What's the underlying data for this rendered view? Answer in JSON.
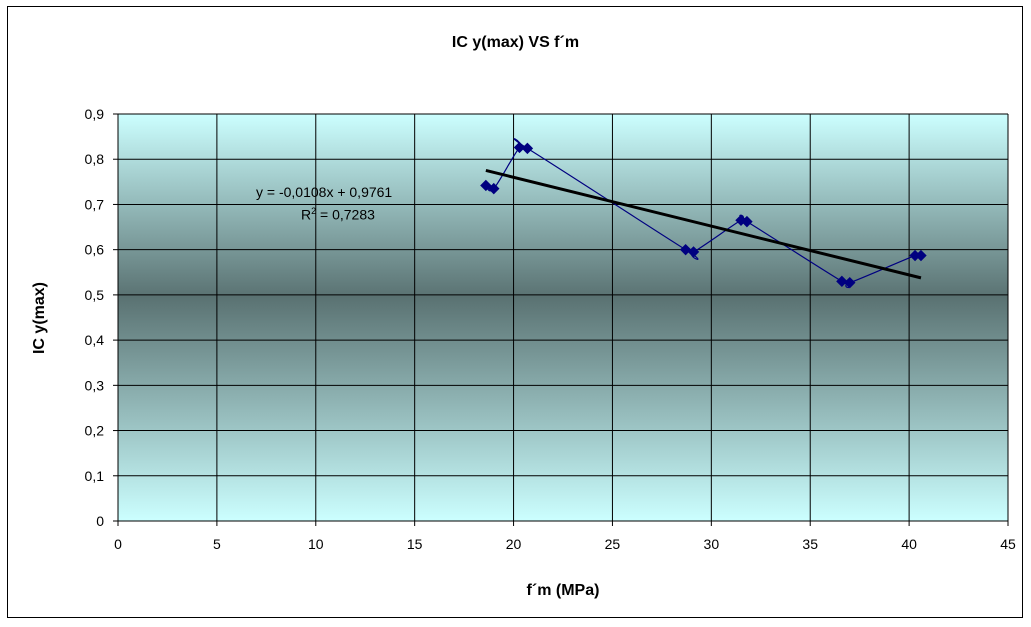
{
  "chart_data": {
    "type": "scatter",
    "title": "IC y(max) VS  f´m",
    "xlabel": "f´m (MPa)",
    "ylabel": "IC y(max)",
    "xlim": [
      0,
      45
    ],
    "ylim": [
      0,
      0.9
    ],
    "xticks": [
      0,
      5,
      10,
      15,
      20,
      25,
      30,
      35,
      40,
      45
    ],
    "xtick_labels": [
      "0",
      "5",
      "10",
      "15",
      "20",
      "25",
      "30",
      "35",
      "40",
      "45"
    ],
    "yticks": [
      0,
      0.1,
      0.2,
      0.3,
      0.4,
      0.5,
      0.6,
      0.7,
      0.8,
      0.9
    ],
    "ytick_labels": [
      "0",
      "0,1",
      "0,2",
      "0,3",
      "0,4",
      "0,5",
      "0,6",
      "0,7",
      "0,8",
      "0,9"
    ],
    "grid": true,
    "series": [
      {
        "x": [
          18.6,
          19.0,
          20.3,
          20.7,
          28.7,
          29.1,
          31.5,
          31.8,
          36.6,
          37.0,
          40.3,
          40.6
        ],
        "y": [
          0.742,
          0.735,
          0.826,
          0.824,
          0.6,
          0.595,
          0.665,
          0.662,
          0.53,
          0.527,
          0.587,
          0.587
        ],
        "color": "#000080"
      }
    ],
    "trendline": {
      "slope": -0.0108,
      "intercept": 0.9761,
      "x_range": [
        18.6,
        40.6
      ],
      "color": "#000000",
      "equation_text": "y = -0,0108x + 0,9761",
      "r2_prefix": "R",
      "r2_sup": "2",
      "r2_value": " = 0,7283"
    },
    "plot_background": {
      "top_color": "#ccffff",
      "middle_color": "#5a7272",
      "bottom_color": "#ccffff"
    }
  }
}
